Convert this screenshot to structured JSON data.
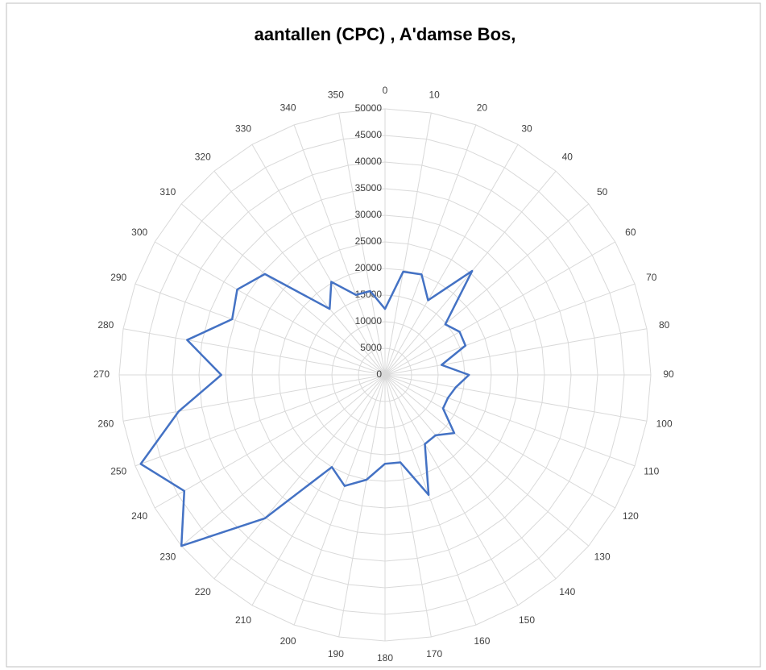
{
  "chart_data": {
    "type": "radar",
    "title": "aantallen (CPC) , A'damse Bos,",
    "categories": [
      "0",
      "10",
      "20",
      "30",
      "40",
      "50",
      "60",
      "70",
      "80",
      "90",
      "100",
      "110",
      "120",
      "130",
      "140",
      "150",
      "160",
      "170",
      "180",
      "190",
      "200",
      "210",
      "220",
      "230",
      "240",
      "250",
      "260",
      "270",
      "280",
      "290",
      "300",
      "310",
      "320",
      "330",
      "340",
      "350"
    ],
    "series": [
      {
        "color": "#4472c4",
        "values": [
          12400,
          19700,
          20100,
          16200,
          25500,
          14800,
          16200,
          16100,
          10800,
          15800,
          13500,
          12600,
          12600,
          17000,
          14800,
          15000,
          24000,
          16700,
          16700,
          20000,
          22200,
          20000,
          35200,
          50000,
          43600,
          48900,
          39400,
          30800,
          37800,
          30600,
          32100,
          29500,
          16200,
          20200,
          16000,
          16000
        ]
      }
    ],
    "ylim": [
      0,
      50000
    ],
    "yticks": [
      0,
      5000,
      10000,
      15000,
      20000,
      25000,
      30000,
      35000,
      40000,
      45000,
      50000
    ],
    "grid": true
  }
}
